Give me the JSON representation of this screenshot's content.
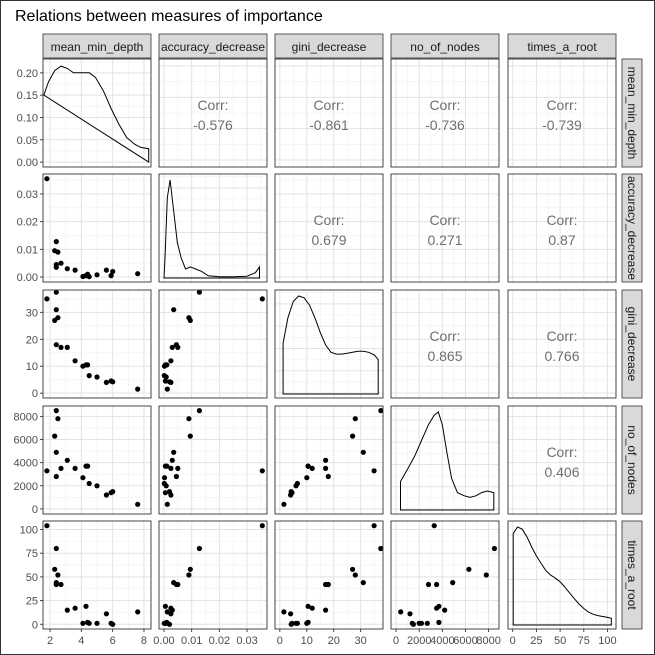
{
  "title": "Relations between measures of importance",
  "chart_data": {
    "type": "scatter",
    "kind": "pairs-matrix",
    "variables": [
      "mean_min_depth",
      "accuracy_decrease",
      "gini_decrease",
      "no_of_nodes",
      "times_a_root"
    ],
    "ticks": [
      {
        "values": [
          2,
          4,
          6,
          8
        ],
        "labels": [
          "2",
          "4",
          "6",
          "8"
        ]
      },
      {
        "values": [
          0,
          0.01,
          0.02,
          0.03
        ],
        "labels": [
          "0.00",
          "0.01",
          "0.02",
          "0.03"
        ]
      },
      {
        "values": [
          0,
          10,
          20,
          30
        ],
        "labels": [
          "0",
          "10",
          "20",
          "30"
        ]
      },
      {
        "values": [
          0,
          2000,
          4000,
          6000,
          8000
        ],
        "labels": [
          "0",
          "2000",
          "4000",
          "6000",
          "8000"
        ]
      },
      {
        "values": [
          0,
          25,
          50,
          75,
          100
        ],
        "labels": [
          "0",
          "25",
          "50",
          "75",
          "100"
        ]
      }
    ],
    "diag_y_ticks": {
      "values": [
        0,
        0.05,
        0.1,
        0.15,
        0.2
      ],
      "labels": [
        "0.00",
        "0.05",
        "0.10",
        "0.15",
        "0.20"
      ]
    },
    "diag_density": [
      [
        [
          1.6,
          0.15
        ],
        [
          1.9,
          0.18
        ],
        [
          2.3,
          0.205
        ],
        [
          2.7,
          0.215
        ],
        [
          3.1,
          0.21
        ],
        [
          3.5,
          0.2
        ],
        [
          4.0,
          0.2
        ],
        [
          4.5,
          0.2
        ],
        [
          4.9,
          0.19
        ],
        [
          5.4,
          0.16
        ],
        [
          5.9,
          0.12
        ],
        [
          6.4,
          0.085
        ],
        [
          6.9,
          0.055
        ],
        [
          7.4,
          0.04
        ],
        [
          7.8,
          0.033
        ],
        [
          8.3,
          0.03
        ],
        [
          8.3,
          0.0
        ]
      ],
      [
        [
          0.0,
          0.0
        ],
        [
          0.0004,
          0.005
        ],
        [
          0.0012,
          0.018
        ],
        [
          0.0022,
          0.022
        ],
        [
          0.0035,
          0.015
        ],
        [
          0.0048,
          0.008
        ],
        [
          0.0062,
          0.0045
        ],
        [
          0.0078,
          0.002
        ],
        [
          0.0095,
          0.0025
        ],
        [
          0.0115,
          0.002
        ],
        [
          0.0135,
          0.0015
        ],
        [
          0.016,
          0.0005
        ],
        [
          0.02,
          0.0003
        ],
        [
          0.025,
          0.0003
        ],
        [
          0.03,
          0.0004
        ],
        [
          0.033,
          0.0012
        ],
        [
          0.0345,
          0.0025
        ],
        [
          0.0345,
          0.0
        ]
      ],
      [
        [
          1.2,
          0.0
        ],
        [
          1.2,
          0.014
        ],
        [
          3,
          0.021
        ],
        [
          5,
          0.0255
        ],
        [
          7,
          0.027
        ],
        [
          9,
          0.0265
        ],
        [
          11,
          0.0245
        ],
        [
          13,
          0.021
        ],
        [
          15,
          0.017
        ],
        [
          17,
          0.0135
        ],
        [
          19,
          0.0115
        ],
        [
          21,
          0.011
        ],
        [
          23,
          0.011
        ],
        [
          25,
          0.0112
        ],
        [
          27,
          0.0115
        ],
        [
          29,
          0.0118
        ],
        [
          31,
          0.0118
        ],
        [
          33,
          0.0115
        ],
        [
          35,
          0.0108
        ],
        [
          36.5,
          0.0095
        ],
        [
          36.5,
          0.0
        ]
      ],
      [
        [
          380,
          0.0
        ],
        [
          380,
          9e-05
        ],
        [
          1000,
          0.00013
        ],
        [
          1600,
          0.00017
        ],
        [
          2200,
          0.00022
        ],
        [
          2800,
          0.00027
        ],
        [
          3300,
          0.0003
        ],
        [
          3650,
          0.00031
        ],
        [
          4000,
          0.00027
        ],
        [
          4400,
          0.00018
        ],
        [
          4800,
          0.0001
        ],
        [
          5300,
          5.5e-05
        ],
        [
          5900,
          4.5e-05
        ],
        [
          6400,
          4e-05
        ],
        [
          6900,
          4.5e-05
        ],
        [
          7400,
          5.5e-05
        ],
        [
          7900,
          6e-05
        ],
        [
          8450,
          5.5e-05
        ],
        [
          8450,
          0.0
        ]
      ],
      [
        [
          0.5,
          0.0
        ],
        [
          0.5,
          0.0205
        ],
        [
          5,
          0.022
        ],
        [
          10,
          0.0215
        ],
        [
          15,
          0.0198
        ],
        [
          20,
          0.0175
        ],
        [
          25,
          0.0155
        ],
        [
          30,
          0.0138
        ],
        [
          35,
          0.0122
        ],
        [
          40,
          0.0112
        ],
        [
          45,
          0.0105
        ],
        [
          50,
          0.0097
        ],
        [
          55,
          0.0085
        ],
        [
          60,
          0.0072
        ],
        [
          65,
          0.0059
        ],
        [
          70,
          0.0047
        ],
        [
          75,
          0.0037
        ],
        [
          80,
          0.0029
        ],
        [
          85,
          0.0024
        ],
        [
          90,
          0.0021
        ],
        [
          95,
          0.0019
        ],
        [
          100,
          0.0017
        ],
        [
          104,
          0.0015
        ],
        [
          104,
          0.0
        ]
      ]
    ],
    "correlations": [
      {
        "row": 0,
        "col": 1,
        "label": "Corr:",
        "value": "-0.576"
      },
      {
        "row": 0,
        "col": 2,
        "label": "Corr:",
        "value": "-0.861"
      },
      {
        "row": 0,
        "col": 3,
        "label": "Corr:",
        "value": "-0.736"
      },
      {
        "row": 0,
        "col": 4,
        "label": "Corr:",
        "value": "-0.739"
      },
      {
        "row": 1,
        "col": 2,
        "label": "Corr:",
        "value": "0.679"
      },
      {
        "row": 1,
        "col": 3,
        "label": "Corr:",
        "value": "0.271"
      },
      {
        "row": 1,
        "col": 4,
        "label": "Corr:",
        "value": "0.87"
      },
      {
        "row": 2,
        "col": 3,
        "label": "Corr:",
        "value": "0.865"
      },
      {
        "row": 2,
        "col": 4,
        "label": "Corr:",
        "value": "0.766"
      },
      {
        "row": 3,
        "col": 4,
        "label": "Corr:",
        "value": "0.406"
      }
    ],
    "points": [
      [
        1.8,
        0.0355,
        35.0,
        3300,
        104
      ],
      [
        2.4,
        0.0128,
        37.5,
        8500,
        80
      ],
      [
        2.3,
        0.0095,
        27.0,
        6300,
        58
      ],
      [
        2.5,
        0.009,
        28.0,
        7800,
        52
      ],
      [
        2.4,
        0.0035,
        31.0,
        4900,
        44
      ],
      [
        2.4,
        0.0045,
        18.0,
        2800,
        42
      ],
      [
        2.7,
        0.005,
        17.0,
        3500,
        42
      ],
      [
        3.1,
        0.003,
        17.0,
        4200,
        15
      ],
      [
        3.6,
        0.0025,
        12.0,
        3500,
        17
      ],
      [
        4.3,
        0.0005,
        10.5,
        3700,
        19
      ],
      [
        4.1,
        0.0002,
        10.0,
        2700,
        1
      ],
      [
        4.4,
        0.001,
        10.5,
        3700,
        2
      ],
      [
        4.5,
        0.0001,
        6.5,
        2200,
        1
      ],
      [
        5.0,
        0.0008,
        6.0,
        2000,
        1
      ],
      [
        5.6,
        0.0025,
        4.0,
        1200,
        11
      ],
      [
        5.9,
        0.0005,
        4.5,
        1400,
        1
      ],
      [
        6.0,
        0.002,
        4.2,
        1500,
        0
      ],
      [
        7.6,
        0.0012,
        1.5,
        400,
        13
      ]
    ]
  }
}
